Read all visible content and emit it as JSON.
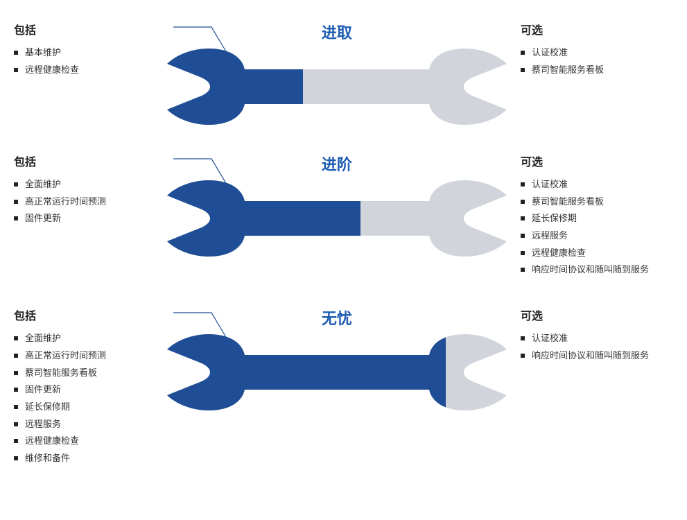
{
  "colors": {
    "accent": "#1f4e96",
    "title": "#1e5cb3",
    "inactive": "#d1d5db",
    "text": "#222222",
    "bullet": "#222222",
    "connector": "#1f4e96"
  },
  "labels": {
    "included": "包括",
    "optional": "可选"
  },
  "tiers": [
    {
      "title": "进取",
      "fill_ratio": 0.4,
      "included": [
        "基本维护",
        "远程健康检查"
      ],
      "optional": [
        "认证校准",
        "蔡司智能服务看板"
      ]
    },
    {
      "title": "进阶",
      "fill_ratio": 0.57,
      "included": [
        "全面维护",
        "高正常运行时间预测",
        "固件更新"
      ],
      "optional": [
        "认证校准",
        "蔡司智能服务看板",
        "延长保修期",
        "远程服务",
        "远程健康检查",
        "响应时间协议和随叫随到服务"
      ]
    },
    {
      "title": "无忧",
      "fill_ratio": 0.82,
      "included": [
        "全面维护",
        "高正常运行时间预测",
        "蔡司智能服务看板",
        "固件更新",
        "延长保修期",
        "远程服务",
        "远程健康检查",
        "维修和备件"
      ],
      "optional": [
        "认证校准",
        "响应时间协议和随叫随到服务"
      ]
    }
  ]
}
